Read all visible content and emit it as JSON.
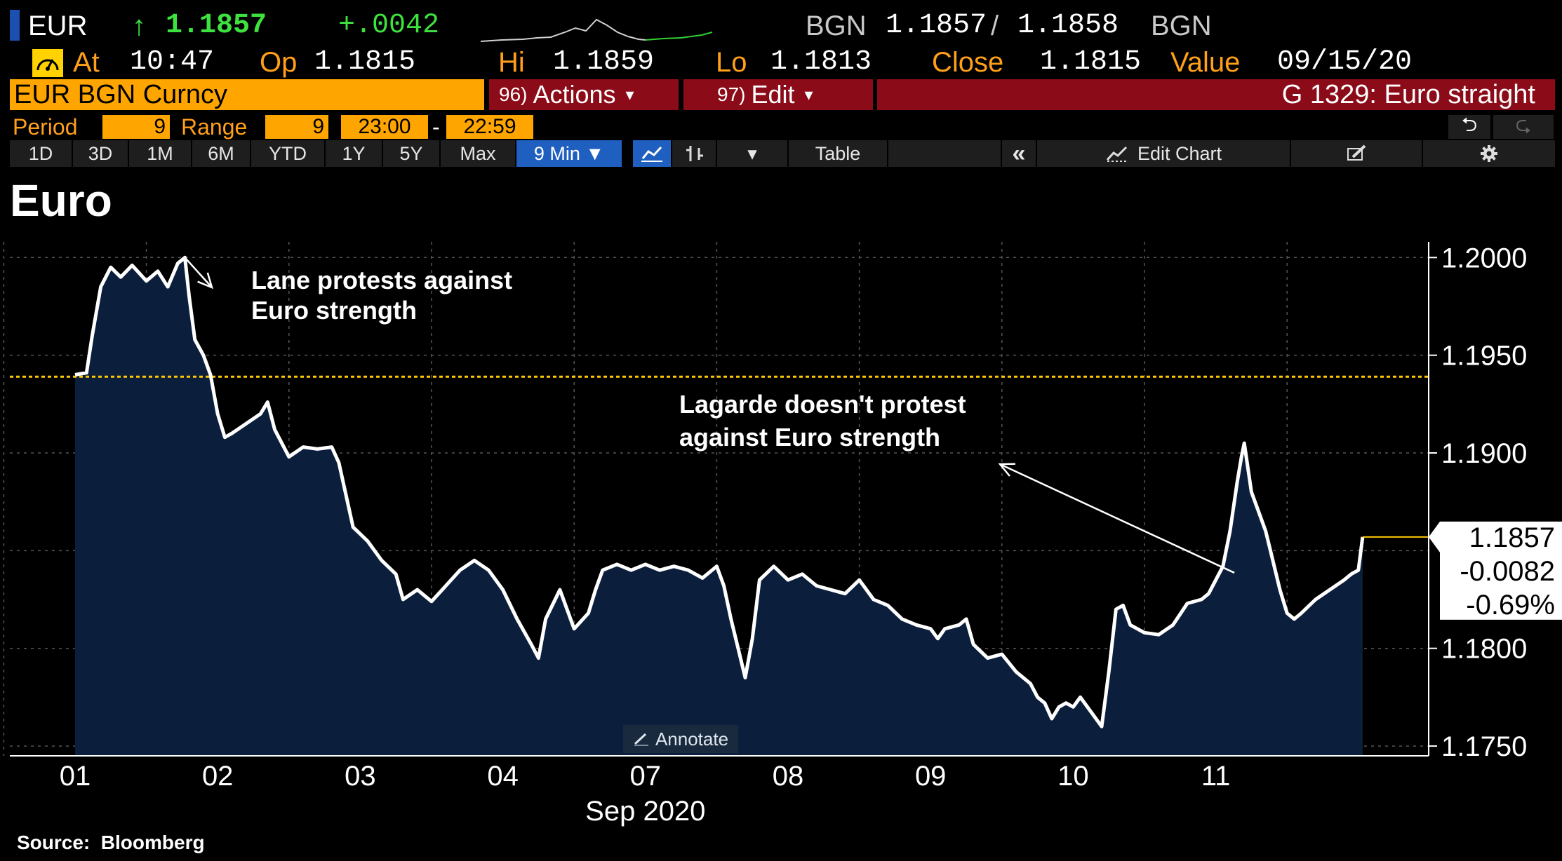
{
  "header": {
    "ticker": "EUR",
    "arrow": "↑",
    "last": "1.1857",
    "change": "+.0042",
    "bid_ccy": "BGN",
    "bid": "1.1857",
    "slash": "/",
    "ask": "1.1858",
    "ask_ccy": "BGN",
    "at_label": "At",
    "at_time": "10:47",
    "op_label": "Op",
    "op_value": "1.1815",
    "hi_label": "Hi",
    "hi_value": "1.1859",
    "lo_label": "Lo",
    "lo_value": "1.1813",
    "close_label": "Close",
    "close_value": "1.1815",
    "value_label": "Value",
    "value_date": "09/15/20"
  },
  "command_bar": {
    "security": "EUR BGN Curncy",
    "actions_num": "96)",
    "actions_label": "Actions",
    "actions_caret": "▾",
    "edit_num": "97)",
    "edit_label": "Edit",
    "edit_caret": "▾",
    "chart_name": "G 1329: Euro straight"
  },
  "range_bar": {
    "period_label": "Period",
    "period_value": "9",
    "range_label": "Range",
    "range_value": "9",
    "time_from": "23:00",
    "dash": "-",
    "time_to": "22:59",
    "undo_icon": "⮌",
    "redo_icon": "⮎"
  },
  "toolbar": {
    "periods": [
      "1D",
      "3D",
      "1M",
      "6M",
      "YTD",
      "1Y",
      "5Y",
      "Max"
    ],
    "interval": "9 Min ▼",
    "caret": "▾",
    "table": "Table",
    "collapse": "«",
    "edit_chart": "Edit Chart",
    "accent": "#1f5fbf"
  },
  "annotate_label": "Annotate",
  "source": "Source:  Bloomberg",
  "chart_data": {
    "type": "area",
    "title": "Euro",
    "xlabel": "Sep 2020",
    "ylabel": "",
    "x_ticks": [
      "01",
      "02",
      "03",
      "04",
      "07",
      "08",
      "09",
      "10",
      "11"
    ],
    "y_ticks": [
      "1.2000",
      "1.1950",
      "1.1900",
      "1.1800",
      "1.1750"
    ],
    "ylim": [
      1.1745,
      1.2008
    ],
    "grid": true,
    "reference_level": 1.1939,
    "series": [
      {
        "color": "#ffffff",
        "fill": "#0b1e3c",
        "values": [
          [
            0.0,
            1.194
          ],
          [
            0.08,
            1.1941
          ],
          [
            0.12,
            1.196
          ],
          [
            0.18,
            1.1985
          ],
          [
            0.25,
            1.1995
          ],
          [
            0.32,
            1.199
          ],
          [
            0.4,
            1.1996
          ],
          [
            0.5,
            1.1988
          ],
          [
            0.58,
            1.1993
          ],
          [
            0.65,
            1.1985
          ],
          [
            0.72,
            1.1997
          ],
          [
            0.77,
            1.2
          ],
          [
            0.8,
            1.198
          ],
          [
            0.84,
            1.1958
          ],
          [
            0.9,
            1.195
          ],
          [
            0.95,
            1.194
          ],
          [
            1.0,
            1.192
          ],
          [
            1.05,
            1.1908
          ],
          [
            1.1,
            1.191
          ],
          [
            1.2,
            1.1915
          ],
          [
            1.3,
            1.192
          ],
          [
            1.35,
            1.1926
          ],
          [
            1.4,
            1.1912
          ],
          [
            1.5,
            1.1898
          ],
          [
            1.6,
            1.1903
          ],
          [
            1.7,
            1.1902
          ],
          [
            1.8,
            1.1903
          ],
          [
            1.85,
            1.1895
          ],
          [
            1.95,
            1.1862
          ],
          [
            2.05,
            1.1855
          ],
          [
            2.15,
            1.1845
          ],
          [
            2.25,
            1.1838
          ],
          [
            2.3,
            1.1825
          ],
          [
            2.4,
            1.183
          ],
          [
            2.5,
            1.1824
          ],
          [
            2.6,
            1.1832
          ],
          [
            2.7,
            1.184
          ],
          [
            2.8,
            1.1845
          ],
          [
            2.9,
            1.184
          ],
          [
            3.0,
            1.183
          ],
          [
            3.1,
            1.1815
          ],
          [
            3.2,
            1.1802
          ],
          [
            3.25,
            1.1795
          ],
          [
            3.3,
            1.1815
          ],
          [
            3.4,
            1.183
          ],
          [
            3.5,
            1.181
          ],
          [
            3.6,
            1.1818
          ],
          [
            3.65,
            1.183
          ],
          [
            3.7,
            1.184
          ],
          [
            3.8,
            1.1843
          ],
          [
            3.9,
            1.184
          ],
          [
            4.0,
            1.1843
          ],
          [
            4.1,
            1.184
          ],
          [
            4.2,
            1.1842
          ],
          [
            4.3,
            1.184
          ],
          [
            4.4,
            1.1836
          ],
          [
            4.5,
            1.1842
          ],
          [
            4.55,
            1.1832
          ],
          [
            4.6,
            1.1815
          ],
          [
            4.65,
            1.18
          ],
          [
            4.7,
            1.1785
          ],
          [
            4.75,
            1.1805
          ],
          [
            4.8,
            1.1835
          ],
          [
            4.9,
            1.1842
          ],
          [
            5.0,
            1.1835
          ],
          [
            5.1,
            1.1838
          ],
          [
            5.2,
            1.1832
          ],
          [
            5.3,
            1.183
          ],
          [
            5.4,
            1.1828
          ],
          [
            5.5,
            1.1835
          ],
          [
            5.6,
            1.1825
          ],
          [
            5.7,
            1.1822
          ],
          [
            5.8,
            1.1815
          ],
          [
            5.9,
            1.1812
          ],
          [
            6.0,
            1.181
          ],
          [
            6.05,
            1.1805
          ],
          [
            6.1,
            1.181
          ],
          [
            6.2,
            1.1812
          ],
          [
            6.25,
            1.1815
          ],
          [
            6.3,
            1.1802
          ],
          [
            6.4,
            1.1795
          ],
          [
            6.5,
            1.1797
          ],
          [
            6.6,
            1.1788
          ],
          [
            6.7,
            1.1782
          ],
          [
            6.75,
            1.1775
          ],
          [
            6.8,
            1.1772
          ],
          [
            6.85,
            1.1764
          ],
          [
            6.9,
            1.177
          ],
          [
            6.95,
            1.1772
          ],
          [
            7.0,
            1.177
          ],
          [
            7.05,
            1.1775
          ],
          [
            7.1,
            1.177
          ],
          [
            7.15,
            1.1765
          ],
          [
            7.2,
            1.176
          ],
          [
            7.25,
            1.1788
          ],
          [
            7.3,
            1.182
          ],
          [
            7.35,
            1.1822
          ],
          [
            7.4,
            1.1812
          ],
          [
            7.5,
            1.1808
          ],
          [
            7.6,
            1.1807
          ],
          [
            7.7,
            1.1812
          ],
          [
            7.8,
            1.1823
          ],
          [
            7.9,
            1.1825
          ],
          [
            7.95,
            1.1828
          ],
          [
            8.0,
            1.1835
          ],
          [
            8.05,
            1.1842
          ],
          [
            8.1,
            1.186
          ],
          [
            8.15,
            1.1885
          ],
          [
            8.18,
            1.1898
          ],
          [
            8.2,
            1.1905
          ],
          [
            8.25,
            1.188
          ],
          [
            8.3,
            1.187
          ],
          [
            8.35,
            1.186
          ],
          [
            8.4,
            1.1845
          ],
          [
            8.45,
            1.183
          ],
          [
            8.5,
            1.1818
          ],
          [
            8.55,
            1.1815
          ],
          [
            8.6,
            1.1818
          ],
          [
            8.7,
            1.1825
          ],
          [
            8.8,
            1.183
          ],
          [
            8.9,
            1.1835
          ],
          [
            8.95,
            1.1838
          ],
          [
            9.0,
            1.184
          ],
          [
            9.03,
            1.1857
          ]
        ]
      }
    ],
    "last_value_label": "1.1857",
    "last_change_label": "-0.0082",
    "last_pct_label": "-0.69%",
    "annotations": [
      {
        "lines": [
          "Lane protests against",
          "Euro strength"
        ],
        "x": 0.77,
        "y": 1.2
      },
      {
        "lines": [
          "Lagarde doesn't protest",
          "against Euro strength"
        ],
        "x": 8.15,
        "y": 1.1848
      }
    ]
  }
}
